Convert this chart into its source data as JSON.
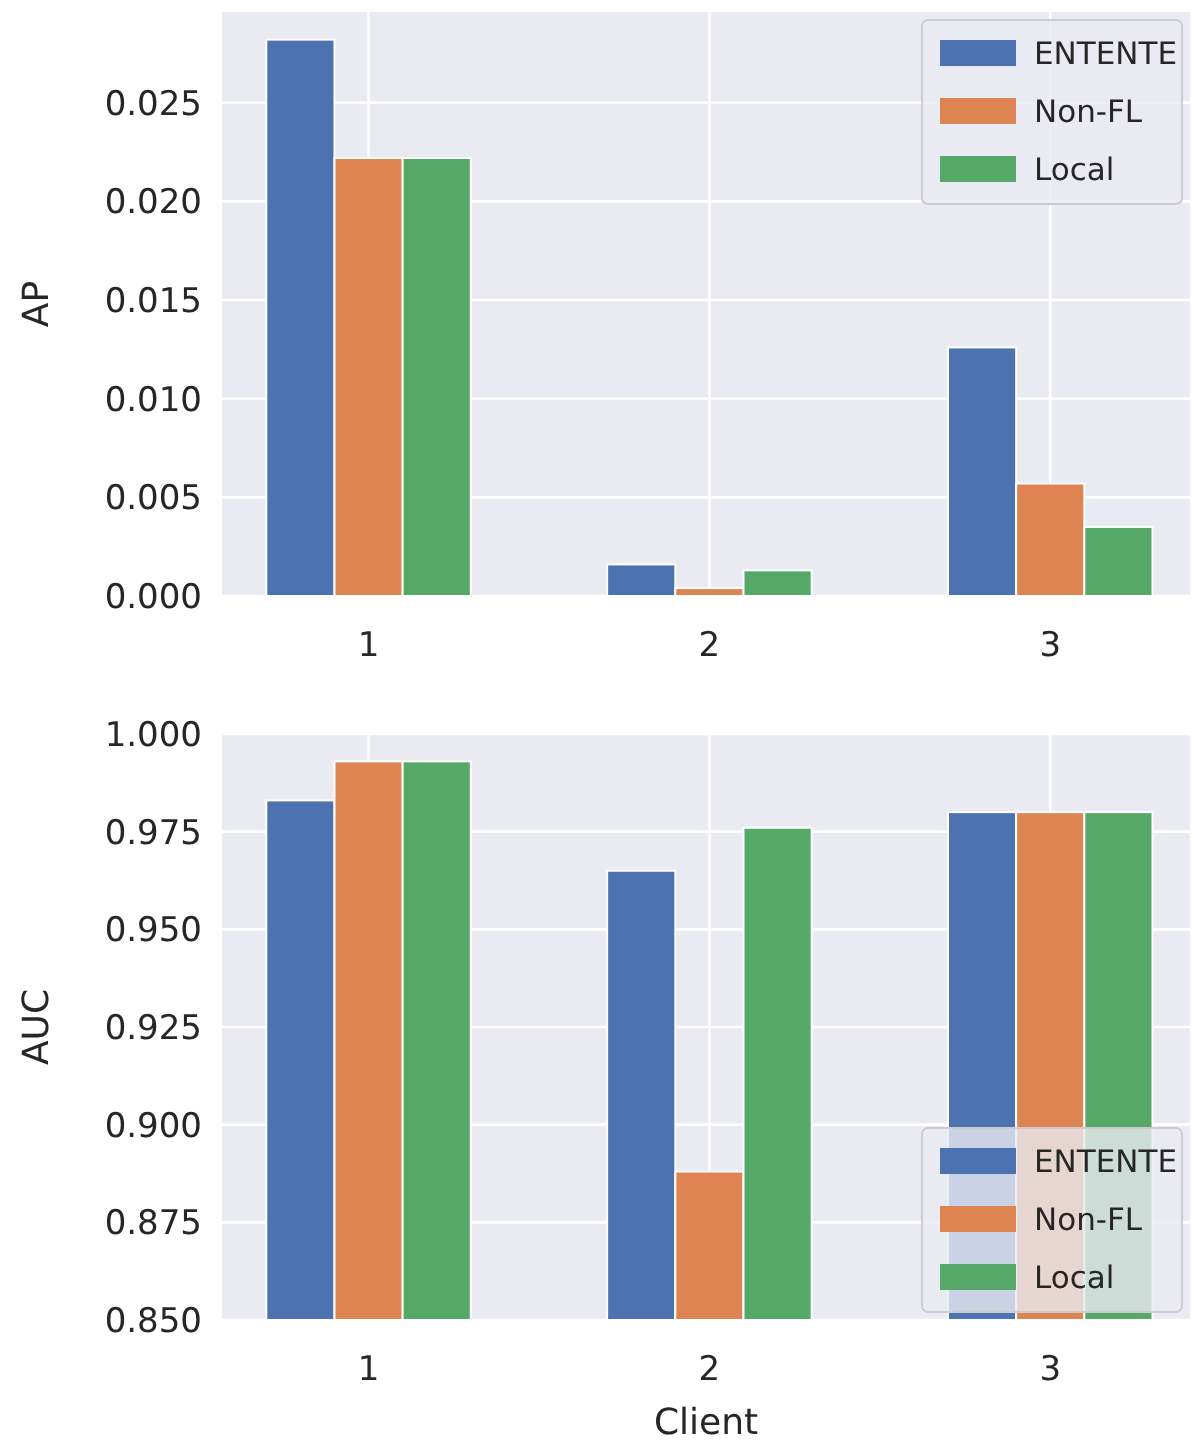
{
  "chart_data": [
    {
      "type": "bar",
      "ylabel": "AP",
      "categories": [
        "1",
        "2",
        "3"
      ],
      "ylim": [
        0,
        0.0296
      ],
      "yticks": [
        {
          "value": 0,
          "label": "0.000"
        },
        {
          "value": 0.005,
          "label": "0.005"
        },
        {
          "value": 0.01,
          "label": "0.010"
        },
        {
          "value": 0.015,
          "label": "0.015"
        },
        {
          "value": 0.02,
          "label": "0.020"
        },
        {
          "value": 0.025,
          "label": "0.025"
        }
      ],
      "grid": true,
      "legend": "top right",
      "series": [
        {
          "name": "ENTENTE",
          "color": "#4c72b0",
          "values": [
            0.0282,
            0.0016,
            0.0126
          ]
        },
        {
          "name": "Non-FL",
          "color": "#dd8452",
          "values": [
            0.0222,
            0.0004,
            0.0057
          ]
        },
        {
          "name": "Local",
          "color": "#55a868",
          "values": [
            0.0222,
            0.0013,
            0.0035
          ]
        }
      ]
    },
    {
      "type": "bar",
      "ylabel": "AUC",
      "xlabel": "Client",
      "categories": [
        "1",
        "2",
        "3"
      ],
      "ylim": [
        0.85,
        1.0
      ],
      "yticks": [
        {
          "value": 0.85,
          "label": "0.850"
        },
        {
          "value": 0.875,
          "label": "0.875"
        },
        {
          "value": 0.9,
          "label": "0.900"
        },
        {
          "value": 0.925,
          "label": "0.925"
        },
        {
          "value": 0.95,
          "label": "0.950"
        },
        {
          "value": 0.975,
          "label": "0.975"
        },
        {
          "value": 1.0,
          "label": "1.000"
        }
      ],
      "grid": true,
      "legend": "bottom right",
      "series": [
        {
          "name": "ENTENTE",
          "color": "#4c72b0",
          "values": [
            0.983,
            0.965,
            0.98
          ]
        },
        {
          "name": "Non-FL",
          "color": "#dd8452",
          "values": [
            0.993,
            0.888,
            0.98
          ]
        },
        {
          "name": "Local",
          "color": "#55a868",
          "values": [
            0.993,
            0.976,
            0.98
          ]
        }
      ]
    }
  ]
}
